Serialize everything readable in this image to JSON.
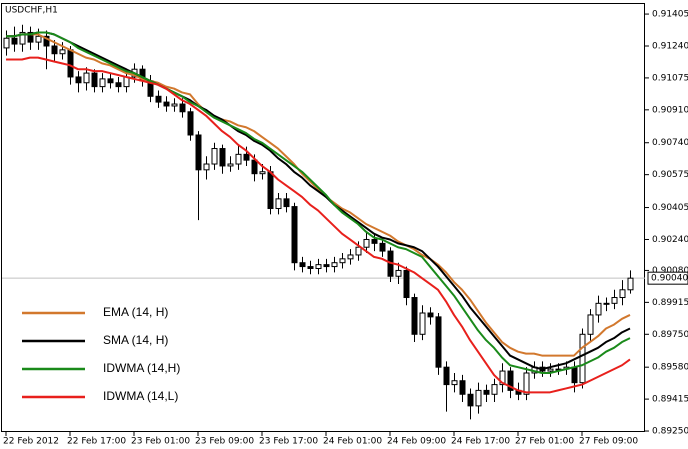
{
  "chart_data": {
    "type": "candlestick",
    "title": "USDCHF,H1",
    "categories": [
      "22 Feb 2012",
      null,
      null,
      null,
      null,
      null,
      null,
      null,
      "22 Feb 17:00",
      null,
      null,
      null,
      null,
      null,
      null,
      null,
      "23 Feb 01:00",
      null,
      null,
      null,
      null,
      null,
      null,
      null,
      "23 Feb 09:00",
      null,
      null,
      null,
      null,
      null,
      null,
      null,
      "23 Feb 17:00",
      null,
      null,
      null,
      null,
      null,
      null,
      null,
      "24 Feb 01:00",
      null,
      null,
      null,
      null,
      null,
      null,
      null,
      "24 Feb 09:00",
      null,
      null,
      null,
      null,
      null,
      null,
      null,
      "24 Feb 17:00",
      null,
      null,
      null,
      null,
      null,
      null,
      null,
      "27 Feb 01:00",
      null,
      null,
      null,
      null,
      null,
      null,
      null,
      "27 Feb 09:00",
      null,
      null,
      null,
      null,
      null,
      null
    ],
    "open": [
      0.9123,
      0.9128,
      0.9125,
      0.9131,
      0.9126,
      0.9129,
      0.9124,
      0.912,
      0.9122,
      0.9108,
      0.9105,
      0.911,
      0.9103,
      0.9107,
      0.9105,
      0.9103,
      0.9108,
      0.9112,
      0.9106,
      0.9098,
      0.9095,
      0.9093,
      0.9094,
      0.909,
      0.9078,
      0.906,
      0.9063,
      0.9071,
      0.9062,
      0.9063,
      0.9068,
      0.9065,
      0.9058,
      0.9059,
      0.904,
      0.9045,
      0.9041,
      0.9012,
      0.901,
      0.9009,
      0.9011,
      0.901,
      0.9012,
      0.9014,
      0.9016,
      0.902,
      0.9024,
      0.9022,
      0.9018,
      0.9005,
      0.9008,
      0.8994,
      0.8975,
      0.8986,
      0.8984,
      0.8958,
      0.8949,
      0.8951,
      0.8944,
      0.8938,
      0.8946,
      0.8944,
      0.8949,
      0.8956,
      0.8946,
      0.8944,
      0.8955,
      0.8958,
      0.8956,
      0.8957,
      0.8957,
      0.8958,
      0.895,
      0.8975,
      0.8985,
      0.8991,
      0.8991,
      0.8994,
      0.8998
    ],
    "high": [
      0.9132,
      0.9134,
      0.9135,
      0.9134,
      0.9133,
      0.9132,
      0.9127,
      0.9126,
      0.9124,
      0.9111,
      0.9113,
      0.9112,
      0.911,
      0.911,
      0.9108,
      0.9111,
      0.9115,
      0.9114,
      0.9109,
      0.9101,
      0.9098,
      0.9097,
      0.9097,
      0.9092,
      0.908,
      0.9067,
      0.9074,
      0.9073,
      0.9067,
      0.9073,
      0.9072,
      0.9068,
      0.9063,
      0.9062,
      0.9048,
      0.9048,
      0.9043,
      0.9015,
      0.9013,
      0.9014,
      0.9014,
      0.9015,
      0.9017,
      0.9019,
      0.9023,
      0.9028,
      0.9027,
      0.9025,
      0.902,
      0.9012,
      0.901,
      0.8996,
      0.899,
      0.8989,
      0.8986,
      0.8961,
      0.8955,
      0.8954,
      0.8947,
      0.895,
      0.8949,
      0.8952,
      0.896,
      0.8958,
      0.895,
      0.8958,
      0.8961,
      0.8961,
      0.896,
      0.896,
      0.8961,
      0.8961,
      0.8978,
      0.8988,
      0.8995,
      0.8994,
      0.8998,
      0.9003,
      0.9008
    ],
    "low": [
      0.9119,
      0.9121,
      0.9121,
      0.9122,
      0.9122,
      0.9112,
      0.9116,
      0.9117,
      0.9104,
      0.91,
      0.9101,
      0.91,
      0.91,
      0.9102,
      0.91,
      0.91,
      0.9105,
      0.9103,
      0.9095,
      0.9092,
      0.909,
      0.909,
      0.9087,
      0.9075,
      0.9034,
      0.9055,
      0.906,
      0.9058,
      0.9059,
      0.906,
      0.9062,
      0.9054,
      0.9055,
      0.9037,
      0.9037,
      0.9038,
      0.9008,
      0.9007,
      0.9006,
      0.9006,
      0.9007,
      0.9007,
      0.9009,
      0.9011,
      0.9013,
      0.9017,
      0.9018,
      0.9015,
      0.9002,
      0.9001,
      0.899,
      0.8971,
      0.8972,
      0.898,
      0.8954,
      0.8935,
      0.8945,
      0.894,
      0.8931,
      0.8934,
      0.894,
      0.894,
      0.8945,
      0.8942,
      0.8941,
      0.8941,
      0.8952,
      0.8953,
      0.8953,
      0.8954,
      0.8954,
      0.8945,
      0.8947,
      0.8971,
      0.8981,
      0.8987,
      0.8988,
      0.899,
      0.8996
    ],
    "close": [
      0.9128,
      0.9125,
      0.9131,
      0.9126,
      0.9129,
      0.9124,
      0.912,
      0.9122,
      0.9108,
      0.9105,
      0.911,
      0.9103,
      0.9107,
      0.9105,
      0.9103,
      0.9108,
      0.9112,
      0.9106,
      0.9098,
      0.9095,
      0.9093,
      0.9094,
      0.909,
      0.9078,
      0.906,
      0.9063,
      0.9071,
      0.9062,
      0.9063,
      0.9068,
      0.9065,
      0.9058,
      0.9059,
      0.904,
      0.9045,
      0.9041,
      0.9012,
      0.901,
      0.9009,
      0.9011,
      0.901,
      0.9012,
      0.9014,
      0.9016,
      0.902,
      0.9024,
      0.9022,
      0.9018,
      0.9005,
      0.9008,
      0.8994,
      0.8975,
      0.8986,
      0.8984,
      0.8958,
      0.8949,
      0.8951,
      0.8944,
      0.8938,
      0.8946,
      0.8944,
      0.8949,
      0.8956,
      0.8946,
      0.8944,
      0.8955,
      0.8958,
      0.8956,
      0.8957,
      0.8957,
      0.8958,
      0.895,
      0.8975,
      0.8985,
      0.8991,
      0.8991,
      0.8994,
      0.8998,
      0.9004
    ],
    "up_color": "#ffffff",
    "down_color": "#000000",
    "series": [
      {
        "name": "EMA (14, H)",
        "color": "#d2782d",
        "values": [
          0.9129,
          0.9129,
          0.913,
          0.913,
          0.913,
          0.9128,
          0.9126,
          0.9124,
          0.9122,
          0.912,
          0.9118,
          0.9117,
          0.9115,
          0.9114,
          0.9112,
          0.911,
          0.9109,
          0.9107,
          0.9106,
          0.9105,
          0.9103,
          0.9102,
          0.91,
          0.9099,
          0.9094,
          0.909,
          0.9087,
          0.9086,
          0.9085,
          0.9083,
          0.9082,
          0.908,
          0.9077,
          0.9074,
          0.9071,
          0.9067,
          0.9063,
          0.9058,
          0.9054,
          0.905,
          0.9046,
          0.9043,
          0.904,
          0.9038,
          0.9035,
          0.9032,
          0.903,
          0.9028,
          0.9026,
          0.9023,
          0.9021,
          0.9019,
          0.9016,
          0.9014,
          0.9011,
          0.9007,
          0.9002,
          0.8998,
          0.8993,
          0.8987,
          0.8981,
          0.8976,
          0.8971,
          0.8968,
          0.8966,
          0.8965,
          0.8965,
          0.8964,
          0.8964,
          0.8964,
          0.8964,
          0.8964,
          0.8968,
          0.8971,
          0.8974,
          0.8978,
          0.898,
          0.8983,
          0.8985
        ]
      },
      {
        "name": "SMA (14, H)",
        "color": "#000000",
        "values": [
          0.9129,
          0.9129,
          0.913,
          0.913,
          0.9131,
          0.9131,
          0.913,
          0.9128,
          0.9126,
          0.9124,
          0.9122,
          0.912,
          0.9118,
          0.9116,
          0.9114,
          0.9112,
          0.911,
          0.9108,
          0.9106,
          0.9104,
          0.9102,
          0.91,
          0.9098,
          0.9096,
          0.9093,
          0.9091,
          0.9088,
          0.9086,
          0.9083,
          0.908,
          0.9078,
          0.9075,
          0.9073,
          0.907,
          0.9066,
          0.9063,
          0.9059,
          0.9056,
          0.9052,
          0.9049,
          0.9046,
          0.9042,
          0.9039,
          0.9036,
          0.9033,
          0.903,
          0.9027,
          0.9025,
          0.9024,
          0.9022,
          0.9021,
          0.902,
          0.9018,
          0.9014,
          0.901,
          0.9005,
          0.9,
          0.8995,
          0.8989,
          0.8984,
          0.8979,
          0.8974,
          0.8969,
          0.8964,
          0.8962,
          0.896,
          0.8958,
          0.8957,
          0.8958,
          0.8959,
          0.896,
          0.8962,
          0.8964,
          0.8966,
          0.8968,
          0.8971,
          0.8973,
          0.8976,
          0.8978
        ]
      },
      {
        "name": "IDWMA (14,H)",
        "color": "#1a8a1a",
        "values": [
          0.9129,
          0.9129,
          0.913,
          0.913,
          0.9131,
          0.9131,
          0.913,
          0.9128,
          0.9126,
          0.9123,
          0.9121,
          0.9119,
          0.9117,
          0.9115,
          0.9113,
          0.9111,
          0.911,
          0.9108,
          0.9106,
          0.9104,
          0.9102,
          0.91,
          0.9098,
          0.9095,
          0.9093,
          0.909,
          0.9087,
          0.9085,
          0.9083,
          0.9081,
          0.9079,
          0.9076,
          0.9074,
          0.9071,
          0.9068,
          0.9065,
          0.9062,
          0.9059,
          0.9055,
          0.9051,
          0.9047,
          0.9042,
          0.9038,
          0.9035,
          0.9032,
          0.9028,
          0.9025,
          0.9024,
          0.9022,
          0.902,
          0.9019,
          0.9017,
          0.9015,
          0.901,
          0.9005,
          0.9,
          0.8995,
          0.8989,
          0.8983,
          0.8977,
          0.8972,
          0.8968,
          0.8963,
          0.8959,
          0.8958,
          0.8957,
          0.8956,
          0.8955,
          0.8955,
          0.8956,
          0.8957,
          0.8958,
          0.8959,
          0.8961,
          0.8963,
          0.8966,
          0.8968,
          0.8971,
          0.8973
        ]
      },
      {
        "name": "IDWMA (14,L)",
        "color": "#e8201c",
        "values": [
          0.9117,
          0.9117,
          0.9117,
          0.9118,
          0.9118,
          0.9117,
          0.9116,
          0.9115,
          0.9114,
          0.9112,
          0.9112,
          0.9111,
          0.9111,
          0.911,
          0.9109,
          0.9108,
          0.9107,
          0.9106,
          0.9105,
          0.9104,
          0.9102,
          0.9099,
          0.9096,
          0.9094,
          0.9091,
          0.9088,
          0.9084,
          0.908,
          0.9077,
          0.9073,
          0.907,
          0.9066,
          0.9062,
          0.9059,
          0.9055,
          0.9052,
          0.9049,
          0.9046,
          0.9042,
          0.9039,
          0.9035,
          0.9031,
          0.9027,
          0.9024,
          0.9021,
          0.9018,
          0.9015,
          0.9014,
          0.9012,
          0.9011,
          0.9009,
          0.9007,
          0.9004,
          0.9001,
          0.8998,
          0.8992,
          0.8985,
          0.8979,
          0.8972,
          0.8966,
          0.896,
          0.8954,
          0.895,
          0.8948,
          0.8946,
          0.8945,
          0.8945,
          0.8945,
          0.8945,
          0.8946,
          0.8947,
          0.8948,
          0.8949,
          0.8951,
          0.8953,
          0.8955,
          0.8957,
          0.8959,
          0.8962
        ]
      }
    ],
    "ylim": [
      0.89245,
      0.91457
    ],
    "yticks": [
      0.91405,
      {
        "value": 0.9124,
        "label": "0.91240"
      },
      0.91075,
      {
        "value": 0.9091,
        "label": "0.90910"
      },
      {
        "value": 0.9074,
        "label": "0.90740"
      },
      0.90575,
      0.90405,
      {
        "value": 0.9024,
        "label": "0.90240"
      },
      {
        "value": 0.9008,
        "label": "0.90080"
      },
      0.89915,
      {
        "value": 0.8975,
        "label": "0.89750"
      },
      {
        "value": 0.8958,
        "label": "0.89580"
      },
      0.89415,
      {
        "value": 0.8925,
        "label": "0.89250"
      }
    ],
    "price_line": {
      "value": 0.9004,
      "label": "0.90040"
    },
    "grid": false,
    "legend": "bottom-left"
  }
}
